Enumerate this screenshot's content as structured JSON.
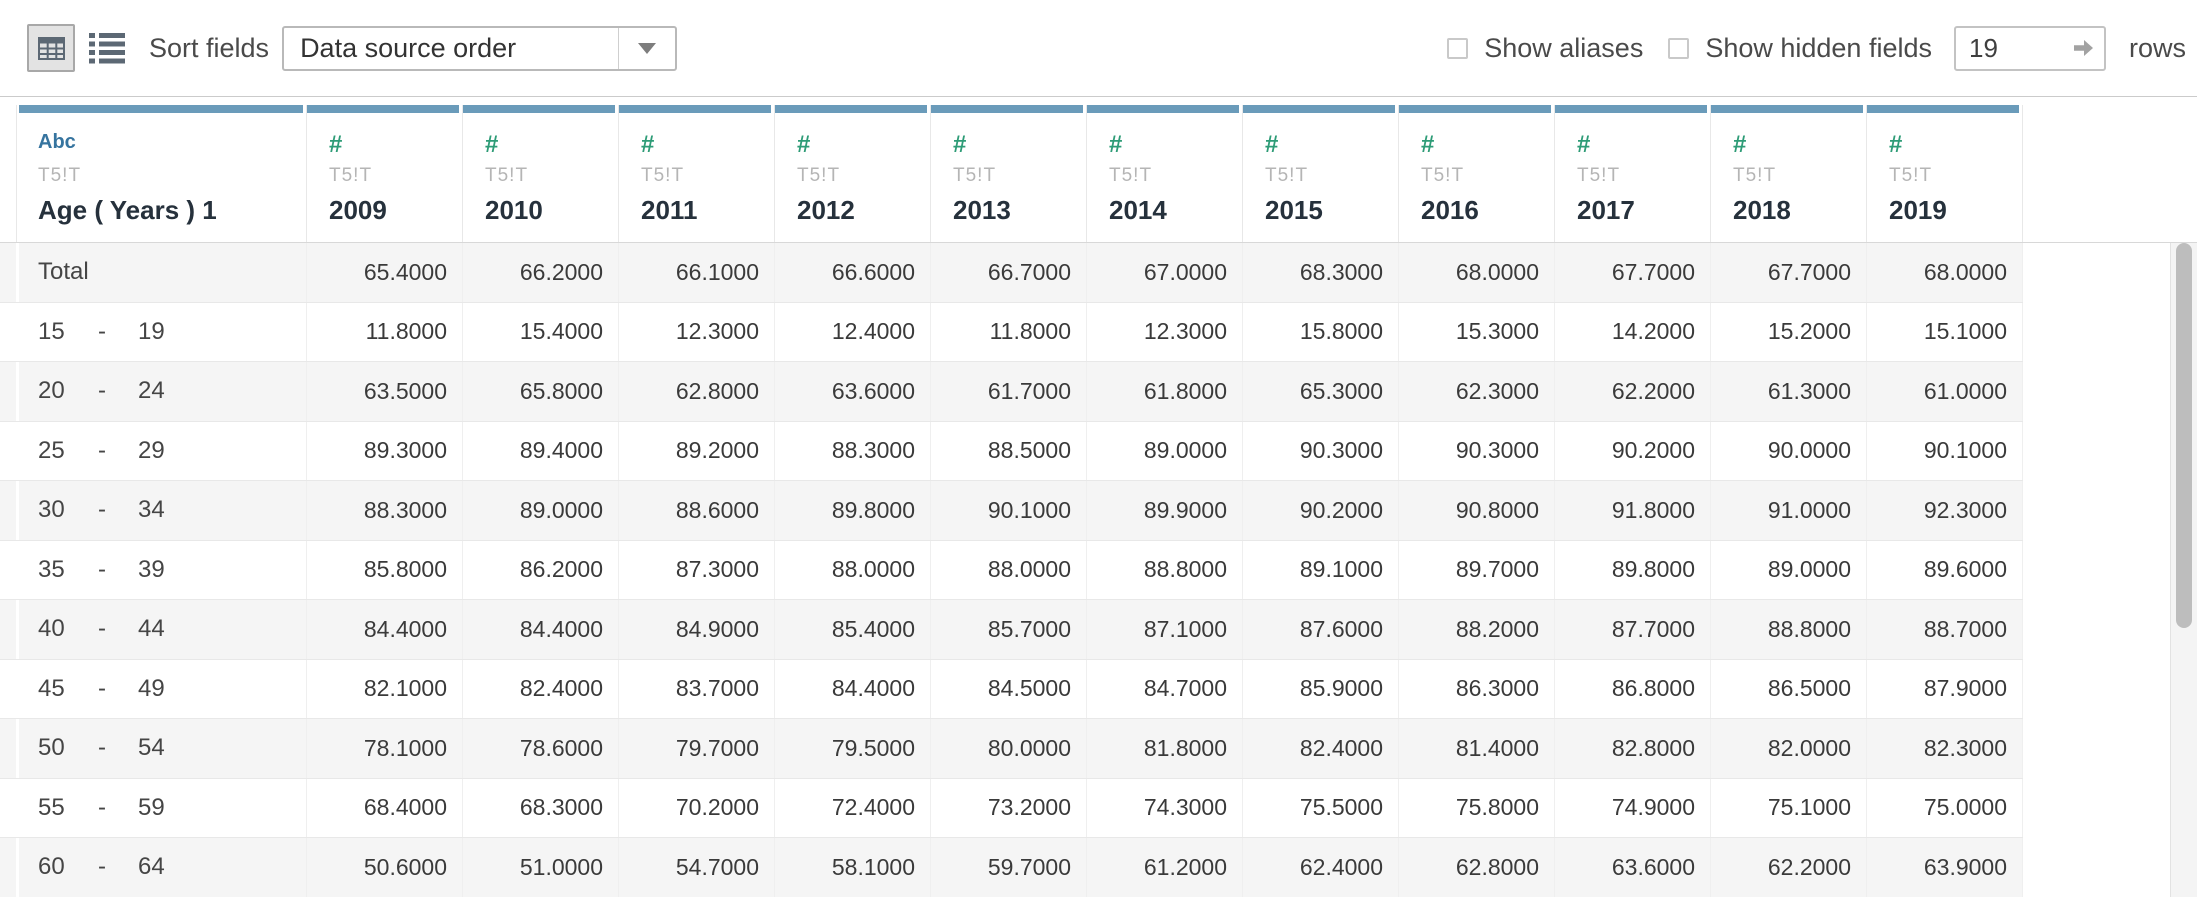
{
  "toolbar": {
    "view_toggle": {
      "selected": "grid"
    },
    "sort_fields_label": "Sort fields",
    "sort_order_value": "Data source order",
    "show_aliases_label": "Show aliases",
    "show_aliases_checked": false,
    "show_hidden_fields_label": "Show hidden fields",
    "show_hidden_fields_checked": false,
    "rows_input_value": "19",
    "rows_label": "rows"
  },
  "table": {
    "row_header_column": {
      "type_icon": "Abc",
      "table_ref": "T5!T",
      "name": "Age ( Years ) 1"
    },
    "year_columns": [
      {
        "type_icon": "#",
        "table_ref": "T5!T",
        "name": "2009"
      },
      {
        "type_icon": "#",
        "table_ref": "T5!T",
        "name": "2010"
      },
      {
        "type_icon": "#",
        "table_ref": "T5!T",
        "name": "2011"
      },
      {
        "type_icon": "#",
        "table_ref": "T5!T",
        "name": "2012"
      },
      {
        "type_icon": "#",
        "table_ref": "T5!T",
        "name": "2013"
      },
      {
        "type_icon": "#",
        "table_ref": "T5!T",
        "name": "2014"
      },
      {
        "type_icon": "#",
        "table_ref": "T5!T",
        "name": "2015"
      },
      {
        "type_icon": "#",
        "table_ref": "T5!T",
        "name": "2016"
      },
      {
        "type_icon": "#",
        "table_ref": "T5!T",
        "name": "2017"
      },
      {
        "type_icon": "#",
        "table_ref": "T5!T",
        "name": "2018"
      },
      {
        "type_icon": "#",
        "table_ref": "T5!T",
        "name": "2019"
      }
    ],
    "range_separator": "-",
    "rows": [
      {
        "from": "Total",
        "to": "",
        "values": [
          "65.4000",
          "66.2000",
          "66.1000",
          "66.6000",
          "66.7000",
          "67.0000",
          "68.3000",
          "68.0000",
          "67.7000",
          "67.7000",
          "68.0000"
        ]
      },
      {
        "from": "15",
        "to": "19",
        "values": [
          "11.8000",
          "15.4000",
          "12.3000",
          "12.4000",
          "11.8000",
          "12.3000",
          "15.8000",
          "15.3000",
          "14.2000",
          "15.2000",
          "15.1000"
        ]
      },
      {
        "from": "20",
        "to": "24",
        "values": [
          "63.5000",
          "65.8000",
          "62.8000",
          "63.6000",
          "61.7000",
          "61.8000",
          "65.3000",
          "62.3000",
          "62.2000",
          "61.3000",
          "61.0000"
        ]
      },
      {
        "from": "25",
        "to": "29",
        "values": [
          "89.3000",
          "89.4000",
          "89.2000",
          "88.3000",
          "88.5000",
          "89.0000",
          "90.3000",
          "90.3000",
          "90.2000",
          "90.0000",
          "90.1000"
        ]
      },
      {
        "from": "30",
        "to": "34",
        "values": [
          "88.3000",
          "89.0000",
          "88.6000",
          "89.8000",
          "90.1000",
          "89.9000",
          "90.2000",
          "90.8000",
          "91.8000",
          "91.0000",
          "92.3000"
        ]
      },
      {
        "from": "35",
        "to": "39",
        "values": [
          "85.8000",
          "86.2000",
          "87.3000",
          "88.0000",
          "88.0000",
          "88.8000",
          "89.1000",
          "89.7000",
          "89.8000",
          "89.0000",
          "89.6000"
        ]
      },
      {
        "from": "40",
        "to": "44",
        "values": [
          "84.4000",
          "84.4000",
          "84.9000",
          "85.4000",
          "85.7000",
          "87.1000",
          "87.6000",
          "88.2000",
          "87.7000",
          "88.8000",
          "88.7000"
        ]
      },
      {
        "from": "45",
        "to": "49",
        "values": [
          "82.1000",
          "82.4000",
          "83.7000",
          "84.4000",
          "84.5000",
          "84.7000",
          "85.9000",
          "86.3000",
          "86.8000",
          "86.5000",
          "87.9000"
        ]
      },
      {
        "from": "50",
        "to": "54",
        "values": [
          "78.1000",
          "78.6000",
          "79.7000",
          "79.5000",
          "80.0000",
          "81.8000",
          "82.4000",
          "81.4000",
          "82.8000",
          "82.0000",
          "82.3000"
        ]
      },
      {
        "from": "55",
        "to": "59",
        "values": [
          "68.4000",
          "68.3000",
          "70.2000",
          "72.4000",
          "73.2000",
          "74.3000",
          "75.5000",
          "75.8000",
          "74.9000",
          "75.1000",
          "75.0000"
        ]
      },
      {
        "from": "60",
        "to": "64",
        "values": [
          "50.6000",
          "51.0000",
          "54.7000",
          "58.1000",
          "59.7000",
          "61.2000",
          "62.4000",
          "62.8000",
          "63.6000",
          "62.2000",
          "63.9000"
        ]
      }
    ]
  },
  "colors": {
    "header_accent_bar": "#6a9bba",
    "numeric_type_green": "#2e9c77",
    "string_type_blue": "#36749f",
    "row_band": "#f5f5f5"
  }
}
